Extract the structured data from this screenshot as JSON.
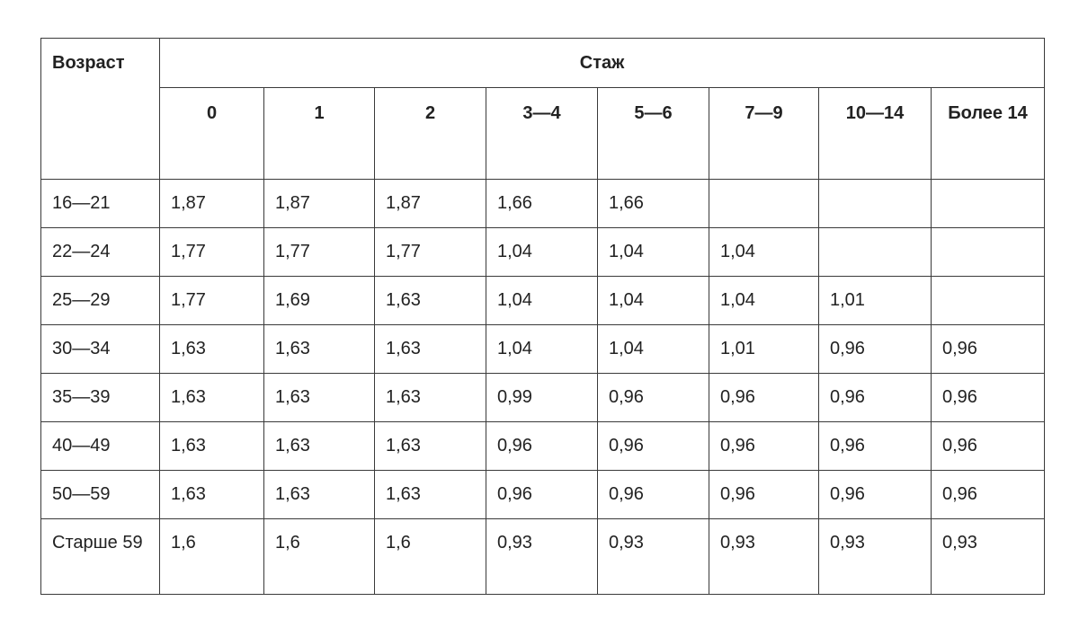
{
  "table": {
    "header": {
      "age": "Возраст",
      "experience": "Стаж",
      "columns": [
        "0",
        "1",
        "2",
        "3—4",
        "5—6",
        "7—9",
        "10—14",
        "Более 14"
      ]
    },
    "rows": [
      [
        "16—21",
        "1,87",
        "1,87",
        "1,87",
        "1,66",
        "1,66",
        null,
        null,
        null
      ],
      [
        "22—24",
        "1,77",
        "1,77",
        "1,77",
        "1,04",
        "1,04",
        "1,04",
        null,
        null
      ],
      [
        "25—29",
        "1,77",
        "1,69",
        "1,63",
        "1,04",
        "1,04",
        "1,04",
        "1,01",
        null
      ],
      [
        "30—34",
        "1,63",
        "1,63",
        "1,63",
        "1,04",
        "1,04",
        "1,01",
        "0,96",
        "0,96"
      ],
      [
        "35—39",
        "1,63",
        "1,63",
        "1,63",
        "0,99",
        "0,96",
        "0,96",
        "0,96",
        "0,96"
      ],
      [
        "40—49",
        "1,63",
        "1,63",
        "1,63",
        "0,96",
        "0,96",
        "0,96",
        "0,96",
        "0,96"
      ],
      [
        "50—59",
        "1,63",
        "1,63",
        "1,63",
        "0,96",
        "0,96",
        "0,96",
        "0,96",
        "0,96"
      ],
      [
        "Старше 59",
        "1,6",
        "1,6",
        "1,6",
        "0,93",
        "0,93",
        "0,93",
        "0,93",
        "0,93"
      ]
    ]
  }
}
